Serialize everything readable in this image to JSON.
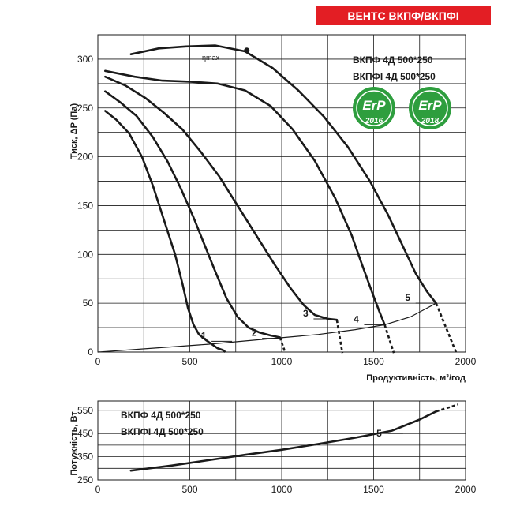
{
  "banner": "ВЕНТС ВКПФ/ВКПФІ",
  "models": [
    "ВКПФ  4Д 500*250",
    "ВКПФІ  4Д 500*250"
  ],
  "badges": [
    {
      "text": "ErP",
      "year": "2016",
      "color": "#2e9e3e"
    },
    {
      "text": "ErP",
      "year": "2018",
      "color": "#2e9e3e"
    }
  ],
  "colors": {
    "line": "#1a1a1a",
    "banner": "#e31e24"
  },
  "chart_data": [
    {
      "type": "line",
      "xlabel": "Продуктивність, м³/год",
      "ylabel": "Тиск,  ΔP (Па)",
      "xlim": [
        0,
        2000
      ],
      "ylim": [
        0,
        325
      ],
      "xticks": [
        0,
        500,
        1000,
        1500,
        2000
      ],
      "yticks": [
        0,
        50,
        100,
        150,
        200,
        250,
        300
      ],
      "grid": true,
      "annotation": {
        "text": "ηmax",
        "x": 810,
        "y": 309
      },
      "series": [
        {
          "name": "1",
          "points": [
            [
              40,
              247
            ],
            [
              100,
              238
            ],
            [
              170,
              224
            ],
            [
              240,
              200
            ],
            [
              300,
              170
            ],
            [
              360,
              135
            ],
            [
              420,
              100
            ],
            [
              460,
              70
            ],
            [
              490,
              45
            ],
            [
              520,
              28
            ],
            [
              550,
              18
            ],
            [
              590,
              12
            ],
            [
              620,
              8
            ],
            [
              650,
              4
            ],
            [
              680,
              2
            ]
          ],
          "ext": [
            [
              680,
              2
            ],
            [
              700,
              -1
            ]
          ]
        },
        {
          "name": "2",
          "points": [
            [
              40,
              267
            ],
            [
              120,
              256
            ],
            [
              210,
              242
            ],
            [
              300,
              220
            ],
            [
              380,
              195
            ],
            [
              450,
              168
            ],
            [
              520,
              138
            ],
            [
              580,
              110
            ],
            [
              640,
              82
            ],
            [
              700,
              55
            ],
            [
              760,
              36
            ],
            [
              820,
              25
            ],
            [
              880,
              20
            ],
            [
              940,
              17
            ],
            [
              990,
              15
            ]
          ],
          "ext": [
            [
              990,
              15
            ],
            [
              1020,
              -1
            ]
          ]
        },
        {
          "name": "3",
          "points": [
            [
              40,
              282
            ],
            [
              150,
              273
            ],
            [
              260,
              260
            ],
            [
              360,
              245
            ],
            [
              460,
              228
            ],
            [
              560,
              205
            ],
            [
              660,
              180
            ],
            [
              760,
              150
            ],
            [
              860,
              120
            ],
            [
              960,
              90
            ],
            [
              1050,
              65
            ],
            [
              1120,
              48
            ],
            [
              1180,
              38
            ],
            [
              1250,
              34
            ],
            [
              1300,
              33
            ]
          ],
          "ext": [
            [
              1300,
              33
            ],
            [
              1330,
              -1
            ]
          ]
        },
        {
          "name": "4",
          "points": [
            [
              40,
              288
            ],
            [
              200,
              282
            ],
            [
              350,
              278
            ],
            [
              500,
              277
            ],
            [
              650,
              275
            ],
            [
              800,
              268
            ],
            [
              940,
              252
            ],
            [
              1060,
              228
            ],
            [
              1180,
              196
            ],
            [
              1290,
              158
            ],
            [
              1380,
              120
            ],
            [
              1440,
              88
            ],
            [
              1490,
              62
            ],
            [
              1530,
              42
            ],
            [
              1560,
              28
            ]
          ],
          "ext": [
            [
              1560,
              28
            ],
            [
              1610,
              -1
            ]
          ]
        },
        {
          "name": "5",
          "points": [
            [
              180,
              305
            ],
            [
              330,
              311
            ],
            [
              480,
              313
            ],
            [
              640,
              314
            ],
            [
              800,
              308
            ],
            [
              950,
              291
            ],
            [
              1090,
              268
            ],
            [
              1230,
              241
            ],
            [
              1360,
              210
            ],
            [
              1480,
              175
            ],
            [
              1580,
              140
            ],
            [
              1660,
              108
            ],
            [
              1730,
              80
            ],
            [
              1790,
              62
            ],
            [
              1840,
              50
            ]
          ],
          "ext": [
            [
              1840,
              50
            ],
            [
              1950,
              -1
            ]
          ]
        }
      ],
      "system_curve": {
        "points": [
          [
            0,
            0
          ],
          [
            300,
            4
          ],
          [
            600,
            8
          ],
          [
            900,
            13
          ],
          [
            1200,
            18
          ],
          [
            1400,
            23
          ],
          [
            1560,
            28
          ],
          [
            1700,
            36
          ],
          [
            1780,
            44
          ],
          [
            1840,
            50
          ]
        ]
      }
    },
    {
      "type": "line",
      "ylabel": "Потужність, Вт",
      "xlim": [
        0,
        2000
      ],
      "ylim": [
        250,
        590
      ],
      "xticks": [
        0,
        500,
        1000,
        1500,
        2000
      ],
      "yticks": [
        250,
        350,
        450,
        550
      ],
      "grid": true,
      "series": [
        {
          "name": "5",
          "points": [
            [
              180,
              290
            ],
            [
              400,
              312
            ],
            [
              600,
              335
            ],
            [
              800,
              358
            ],
            [
              1000,
              380
            ],
            [
              1200,
              405
            ],
            [
              1400,
              432
            ],
            [
              1600,
              462
            ],
            [
              1750,
              510
            ],
            [
              1840,
              545
            ]
          ],
          "ext": [
            [
              1840,
              545
            ],
            [
              1960,
              575
            ]
          ]
        }
      ]
    }
  ]
}
